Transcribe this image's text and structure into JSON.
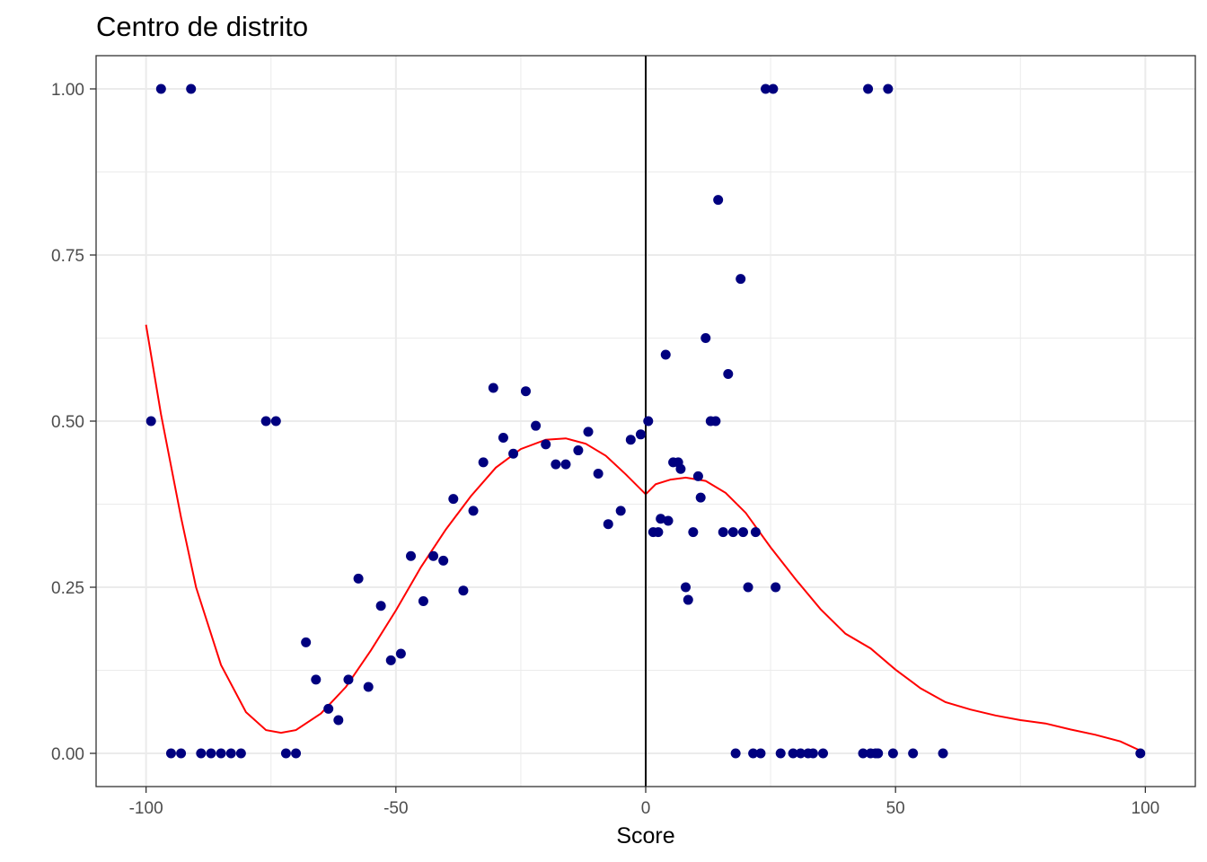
{
  "chart_data": {
    "type": "scatter",
    "title": "Centro de distrito",
    "xlabel": "Score",
    "ylabel": "",
    "xlim": [
      -110,
      110
    ],
    "ylim": [
      -0.05,
      1.05
    ],
    "x_ticks": [
      -100,
      -50,
      0,
      50,
      100
    ],
    "x_tick_labels": [
      "-100",
      "-50",
      "0",
      "50",
      "100"
    ],
    "y_ticks": [
      0,
      0.25,
      0.5,
      0.75,
      1.0
    ],
    "y_tick_labels": [
      "0.00",
      "0.25",
      "0.50",
      "0.75",
      "1.00"
    ],
    "grid": true,
    "cutoff_line_x": 0,
    "colors": {
      "points": "#00007f",
      "fit_line": "#ff0000",
      "cutoff_line": "#000000",
      "grid": "#ebebeb",
      "panel_border": "#333333"
    },
    "points": [
      {
        "x": -99,
        "y": 0.5
      },
      {
        "x": -97,
        "y": 1.0
      },
      {
        "x": -91,
        "y": 1.0
      },
      {
        "x": -95,
        "y": 0.0
      },
      {
        "x": -93,
        "y": 0.0
      },
      {
        "x": -89,
        "y": 0.0
      },
      {
        "x": -87,
        "y": 0.0
      },
      {
        "x": -85,
        "y": 0.0
      },
      {
        "x": -83,
        "y": 0.0
      },
      {
        "x": -81,
        "y": 0.0
      },
      {
        "x": -76,
        "y": 0.5
      },
      {
        "x": -74,
        "y": 0.5
      },
      {
        "x": -72,
        "y": 0.0
      },
      {
        "x": -70,
        "y": 0.0
      },
      {
        "x": -68,
        "y": 0.167
      },
      {
        "x": -66,
        "y": 0.111
      },
      {
        "x": -63.5,
        "y": 0.067
      },
      {
        "x": -61.5,
        "y": 0.05
      },
      {
        "x": -59.5,
        "y": 0.111
      },
      {
        "x": -57.5,
        "y": 0.263
      },
      {
        "x": -55.5,
        "y": 0.1
      },
      {
        "x": -53,
        "y": 0.222
      },
      {
        "x": -51,
        "y": 0.14
      },
      {
        "x": -49,
        "y": 0.15
      },
      {
        "x": -47,
        "y": 0.297
      },
      {
        "x": -44.5,
        "y": 0.229
      },
      {
        "x": -42.5,
        "y": 0.297
      },
      {
        "x": -40.5,
        "y": 0.29
      },
      {
        "x": -38.5,
        "y": 0.383
      },
      {
        "x": -36.5,
        "y": 0.245
      },
      {
        "x": -34.5,
        "y": 0.365
      },
      {
        "x": -32.5,
        "y": 0.438
      },
      {
        "x": -30.5,
        "y": 0.55
      },
      {
        "x": -28.5,
        "y": 0.475
      },
      {
        "x": -26.5,
        "y": 0.451
      },
      {
        "x": -24,
        "y": 0.545
      },
      {
        "x": -22,
        "y": 0.493
      },
      {
        "x": -20,
        "y": 0.465
      },
      {
        "x": -18,
        "y": 0.435
      },
      {
        "x": -16,
        "y": 0.435
      },
      {
        "x": -13.5,
        "y": 0.456
      },
      {
        "x": -11.5,
        "y": 0.484
      },
      {
        "x": -9.5,
        "y": 0.421
      },
      {
        "x": -7.5,
        "y": 0.345
      },
      {
        "x": -5,
        "y": 0.365
      },
      {
        "x": -3,
        "y": 0.472
      },
      {
        "x": -1,
        "y": 0.48
      },
      {
        "x": 0.5,
        "y": 0.5
      },
      {
        "x": 1.5,
        "y": 0.333
      },
      {
        "x": 2.5,
        "y": 0.333
      },
      {
        "x": 3,
        "y": 0.353
      },
      {
        "x": 4,
        "y": 0.6
      },
      {
        "x": 4.5,
        "y": 0.35
      },
      {
        "x": 5.5,
        "y": 0.438
      },
      {
        "x": 6.5,
        "y": 0.438
      },
      {
        "x": 7,
        "y": 0.428
      },
      {
        "x": 8,
        "y": 0.25
      },
      {
        "x": 8.5,
        "y": 0.231
      },
      {
        "x": 9.5,
        "y": 0.333
      },
      {
        "x": 10.5,
        "y": 0.417
      },
      {
        "x": 11,
        "y": 0.385
      },
      {
        "x": 12,
        "y": 0.625
      },
      {
        "x": 13,
        "y": 0.5
      },
      {
        "x": 14,
        "y": 0.5
      },
      {
        "x": 14.5,
        "y": 0.833
      },
      {
        "x": 15.5,
        "y": 0.333
      },
      {
        "x": 16.5,
        "y": 0.571
      },
      {
        "x": 17.5,
        "y": 0.333
      },
      {
        "x": 18,
        "y": 0.0
      },
      {
        "x": 19,
        "y": 0.714
      },
      {
        "x": 19.5,
        "y": 0.333
      },
      {
        "x": 20.5,
        "y": 0.25
      },
      {
        "x": 21.5,
        "y": 0.0
      },
      {
        "x": 22,
        "y": 0.333
      },
      {
        "x": 23,
        "y": 0.0
      },
      {
        "x": 24,
        "y": 1.0
      },
      {
        "x": 25.5,
        "y": 1.0
      },
      {
        "x": 26,
        "y": 0.25
      },
      {
        "x": 27,
        "y": 0.0
      },
      {
        "x": 29.5,
        "y": 0.0
      },
      {
        "x": 31,
        "y": 0.0
      },
      {
        "x": 32.5,
        "y": 0.0
      },
      {
        "x": 33.5,
        "y": 0.0
      },
      {
        "x": 35.5,
        "y": 0.0
      },
      {
        "x": 43.5,
        "y": 0.0
      },
      {
        "x": 44.5,
        "y": 1.0
      },
      {
        "x": 45,
        "y": 0.0
      },
      {
        "x": 46,
        "y": 0.0
      },
      {
        "x": 46.5,
        "y": 0.0
      },
      {
        "x": 48.5,
        "y": 1.0
      },
      {
        "x": 49.5,
        "y": 0.0
      },
      {
        "x": 53.5,
        "y": 0.0
      },
      {
        "x": 59.5,
        "y": 0.0
      },
      {
        "x": 99,
        "y": 0.0
      }
    ],
    "fit_left": [
      {
        "x": -100,
        "y": 0.645
      },
      {
        "x": -97,
        "y": 0.51
      },
      {
        "x": -93,
        "y": 0.355
      },
      {
        "x": -90,
        "y": 0.25
      },
      {
        "x": -85,
        "y": 0.133
      },
      {
        "x": -80,
        "y": 0.062
      },
      {
        "x": -76,
        "y": 0.035
      },
      {
        "x": -73,
        "y": 0.031
      },
      {
        "x": -70,
        "y": 0.035
      },
      {
        "x": -65,
        "y": 0.06
      },
      {
        "x": -60,
        "y": 0.1
      },
      {
        "x": -55,
        "y": 0.155
      },
      {
        "x": -50,
        "y": 0.215
      },
      {
        "x": -45,
        "y": 0.28
      },
      {
        "x": -40,
        "y": 0.337
      },
      {
        "x": -35,
        "y": 0.387
      },
      {
        "x": -30,
        "y": 0.43
      },
      {
        "x": -25,
        "y": 0.458
      },
      {
        "x": -20,
        "y": 0.472
      },
      {
        "x": -16,
        "y": 0.474
      },
      {
        "x": -12,
        "y": 0.466
      },
      {
        "x": -8,
        "y": 0.448
      },
      {
        "x": -4,
        "y": 0.42
      },
      {
        "x": 0,
        "y": 0.39
      }
    ],
    "fit_right": [
      {
        "x": 0,
        "y": 0.39
      },
      {
        "x": 2,
        "y": 0.405
      },
      {
        "x": 5,
        "y": 0.412
      },
      {
        "x": 8,
        "y": 0.415
      },
      {
        "x": 12,
        "y": 0.41
      },
      {
        "x": 16,
        "y": 0.392
      },
      {
        "x": 20,
        "y": 0.362
      },
      {
        "x": 25,
        "y": 0.31
      },
      {
        "x": 30,
        "y": 0.262
      },
      {
        "x": 35,
        "y": 0.217
      },
      {
        "x": 40,
        "y": 0.18
      },
      {
        "x": 45,
        "y": 0.158
      },
      {
        "x": 50,
        "y": 0.126
      },
      {
        "x": 55,
        "y": 0.098
      },
      {
        "x": 60,
        "y": 0.077
      },
      {
        "x": 65,
        "y": 0.066
      },
      {
        "x": 70,
        "y": 0.057
      },
      {
        "x": 75,
        "y": 0.05
      },
      {
        "x": 80,
        "y": 0.045
      },
      {
        "x": 85,
        "y": 0.036
      },
      {
        "x": 90,
        "y": 0.028
      },
      {
        "x": 95,
        "y": 0.018
      },
      {
        "x": 99,
        "y": 0.004
      }
    ]
  }
}
